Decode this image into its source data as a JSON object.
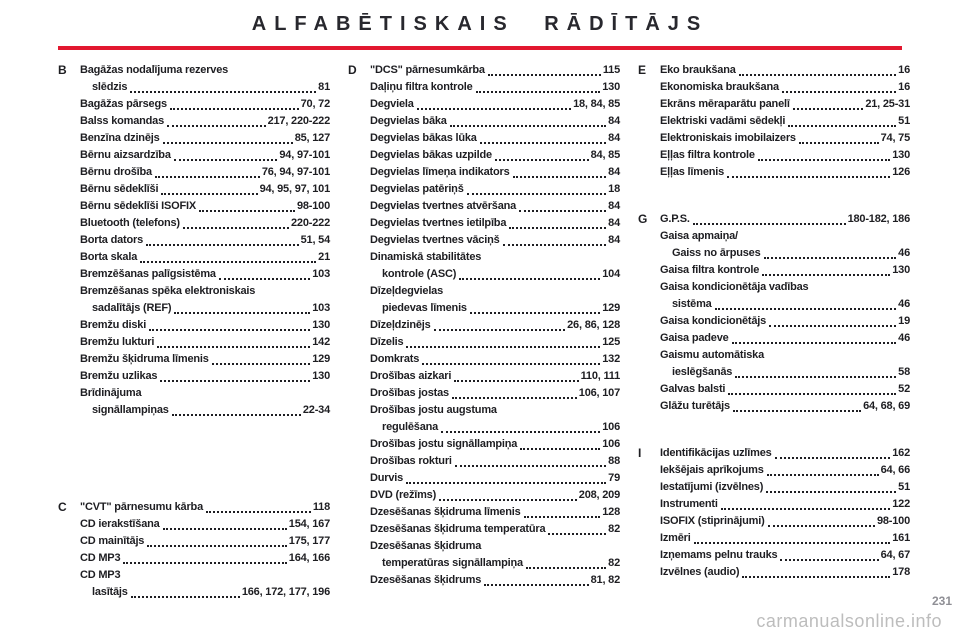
{
  "page": {
    "title": "ALFABĒTISKAIS RĀDĪTĀJS",
    "accent_color": "#e2182f",
    "watermark": "carmanualsonline.info",
    "page_number": "231"
  },
  "index": {
    "columns": [
      {
        "sections": [
          {
            "letter": "B",
            "entries": [
              {
                "label": "Bagāžas nodalījuma rezerves",
                "label2": "slēdzis",
                "pages": "81"
              },
              {
                "label": "Bagāžas pārsegs",
                "pages": "70, 72"
              },
              {
                "label": "Balss komandas",
                "pages": "217, 220-222"
              },
              {
                "label": "Benzīna dzinējs",
                "pages": "85, 127"
              },
              {
                "label": "Bērnu aizsardzība",
                "pages": "94, 97-101"
              },
              {
                "label": "Bērnu drošība",
                "pages": "76, 94, 97-101"
              },
              {
                "label": "Bērnu sēdeklīši",
                "pages": "94, 95, 97, 101"
              },
              {
                "label": "Bērnu sēdeklīši ISOFIX",
                "pages": "98-100"
              },
              {
                "label": "Bluetooth (telefons)",
                "pages": "220-222"
              },
              {
                "label": "Borta dators",
                "pages": "51, 54"
              },
              {
                "label": "Borta skala",
                "pages": "21"
              },
              {
                "label": "Bremzēšanas palīgsistēma",
                "pages": "103"
              },
              {
                "label": "Bremzēšanas spēka elektroniskais",
                "label2": "sadalītājs (REF)",
                "pages": "103"
              },
              {
                "label": "Bremžu diski",
                "pages": "130"
              },
              {
                "label": "Bremžu lukturi",
                "pages": "142"
              },
              {
                "label": "Bremžu šķidruma līmenis",
                "pages": "129"
              },
              {
                "label": "Bremžu uzlikas",
                "pages": "130"
              },
              {
                "label": "Brīdinājuma",
                "label2": "signāllampiņas",
                "pages": "22-34"
              }
            ]
          },
          {
            "letter": "C",
            "entries": [
              {
                "label": "\"CVT\" pārnesumu kārba",
                "pages": "118"
              },
              {
                "label": "CD ierakstīšana",
                "pages": "154, 167"
              },
              {
                "label": "CD mainītājs",
                "pages": "175, 177"
              },
              {
                "label": "CD MP3",
                "pages": "164, 166"
              },
              {
                "label": "CD MP3",
                "label2": "lasītājs",
                "pages": "166, 172, 177, 196"
              }
            ]
          }
        ]
      },
      {
        "sections": [
          {
            "letter": "D",
            "entries": [
              {
                "label": "\"DCS\" pārnesumkārba",
                "pages": "115"
              },
              {
                "label": "Daļiņu filtra kontrole",
                "pages": "130"
              },
              {
                "label": "Degviela",
                "pages": "18, 84, 85"
              },
              {
                "label": "Degvielas bāka",
                "pages": "84"
              },
              {
                "label": "Degvielas bākas lūka",
                "pages": "84"
              },
              {
                "label": "Degvielas bākas uzpilde",
                "pages": "84, 85"
              },
              {
                "label": "Degvielas līmeņa indikators",
                "pages": "84"
              },
              {
                "label": "Degvielas patēriņš",
                "pages": "18"
              },
              {
                "label": "Degvielas tvertnes atvēršana",
                "pages": "84"
              },
              {
                "label": "Degvielas tvertnes ietilpība",
                "pages": "84"
              },
              {
                "label": "Degvielas tvertnes vāciņš",
                "pages": "84"
              },
              {
                "label": "Dinamiskā stabilitātes",
                "label2": "kontrole (ASC)",
                "pages": "104"
              },
              {
                "label": "Dīzeļdegvielas",
                "label2": "piedevas līmenis",
                "pages": "129"
              },
              {
                "label": "Dīzeļdzinējs",
                "pages": "26, 86, 128"
              },
              {
                "label": "Dīzelis",
                "pages": "125"
              },
              {
                "label": "Domkrats",
                "pages": "132"
              },
              {
                "label": "Drošības aizkari",
                "pages": "110, 111"
              },
              {
                "label": "Drošības jostas",
                "pages": "106, 107"
              },
              {
                "label": "Drošības jostu augstuma",
                "label2": "regulēšana",
                "pages": "106"
              },
              {
                "label": "Drošības jostu signāllampiņa",
                "pages": "106"
              },
              {
                "label": "Drošības rokturi",
                "pages": "88"
              },
              {
                "label": "Durvis",
                "pages": "79"
              },
              {
                "label": "DVD (režīms)",
                "pages": "208, 209"
              },
              {
                "label": "Dzesēšanas šķidruma līmenis",
                "pages": "128"
              },
              {
                "label": "Dzesēšanas šķidruma temperatūra",
                "pages": "82"
              },
              {
                "label": "Dzesēšanas šķidruma",
                "label2": "temperatūras signāllampiņa",
                "pages": "82"
              },
              {
                "label": "Dzesēšanas šķidrums",
                "pages": "81, 82"
              }
            ]
          }
        ]
      },
      {
        "sections": [
          {
            "letter": "E",
            "entries": [
              {
                "label": "Eko braukšana",
                "pages": "16"
              },
              {
                "label": "Ekonomiska braukšana",
                "pages": "16"
              },
              {
                "label": "Ekrāns mēraparātu panelī",
                "pages": "21, 25-31"
              },
              {
                "label": "Elektriski vadāmi sēdekļi",
                "pages": "51"
              },
              {
                "label": "Elektroniskais imobilaizers",
                "pages": "74, 75"
              },
              {
                "label": "Eļļas filtra kontrole",
                "pages": "130"
              },
              {
                "label": "Eļļas līmenis",
                "pages": "126"
              }
            ]
          },
          {
            "letter": "G",
            "entries": [
              {
                "label": "G.P.S.",
                "pages": "180-182, 186"
              },
              {
                "label": "Gaisa apmaiņa/",
                "label2": "Gaiss no ārpuses",
                "pages": "46"
              },
              {
                "label": "Gaisa filtra kontrole",
                "pages": "130"
              },
              {
                "label": "Gaisa kondicionētāja vadības",
                "label2": "sistēma",
                "pages": "46"
              },
              {
                "label": "Gaisa kondicionētājs",
                "pages": "19"
              },
              {
                "label": "Gaisa padeve",
                "pages": "46"
              },
              {
                "label": "Gaismu automātiska",
                "label2": "ieslēgšanās",
                "pages": "58"
              },
              {
                "label": "Galvas balsti",
                "pages": "52"
              },
              {
                "label": "Glāžu turētājs",
                "pages": "64, 68, 69"
              }
            ]
          },
          {
            "letter": "I",
            "entries": [
              {
                "label": "Identifikācijas uzlīmes",
                "pages": "162"
              },
              {
                "label": "Iekšējais aprīkojums",
                "pages": "64, 66"
              },
              {
                "label": "Iestatījumi (izvēlnes)",
                "pages": "51"
              },
              {
                "label": "Instrumenti",
                "pages": "122"
              },
              {
                "label": "ISOFIX (stiprinājumi)",
                "pages": "98-100"
              },
              {
                "label": "Izmēri",
                "pages": "161"
              },
              {
                "label": "Izņemams pelnu trauks",
                "pages": "64, 67"
              },
              {
                "label": "Izvēlnes (audio)",
                "pages": "178"
              }
            ]
          }
        ]
      }
    ]
  }
}
